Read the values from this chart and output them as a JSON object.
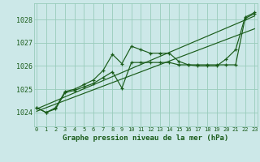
{
  "title": "Graphe pression niveau de la mer (hPa)",
  "bg_color": "#cce8e8",
  "grid_color": "#99ccbb",
  "line_color": "#1a5c1a",
  "x_ticks": [
    0,
    1,
    2,
    3,
    4,
    5,
    6,
    7,
    8,
    9,
    10,
    11,
    12,
    13,
    14,
    15,
    16,
    17,
    18,
    19,
    20,
    21,
    22,
    23
  ],
  "y_ticks": [
    1024,
    1025,
    1026,
    1027,
    1028
  ],
  "ylim": [
    1023.4,
    1028.7
  ],
  "xlim": [
    -0.3,
    23.3
  ],
  "series_main": [
    1024.2,
    1024.0,
    1024.2,
    1024.9,
    1025.0,
    1025.2,
    1025.4,
    1025.8,
    1026.5,
    1026.1,
    1026.85,
    1026.7,
    1026.55,
    1026.55,
    1026.55,
    1026.2,
    1026.05,
    1026.0,
    1026.0,
    1026.0,
    1026.3,
    1026.7,
    1028.1,
    1028.3
  ],
  "series_secondary": [
    1024.2,
    1024.0,
    1024.15,
    1024.85,
    1024.95,
    1025.1,
    1025.25,
    1025.5,
    1025.75,
    1025.05,
    1026.15,
    1026.15,
    1026.15,
    1026.15,
    1026.15,
    1026.05,
    1026.05,
    1026.05,
    1026.05,
    1026.05,
    1026.05,
    1026.05,
    1028.05,
    1028.25
  ],
  "straight_lines": [
    {
      "x": [
        0,
        23
      ],
      "y": [
        1024.15,
        1028.15
      ]
    },
    {
      "x": [
        0,
        23
      ],
      "y": [
        1024.05,
        1027.6
      ]
    }
  ]
}
